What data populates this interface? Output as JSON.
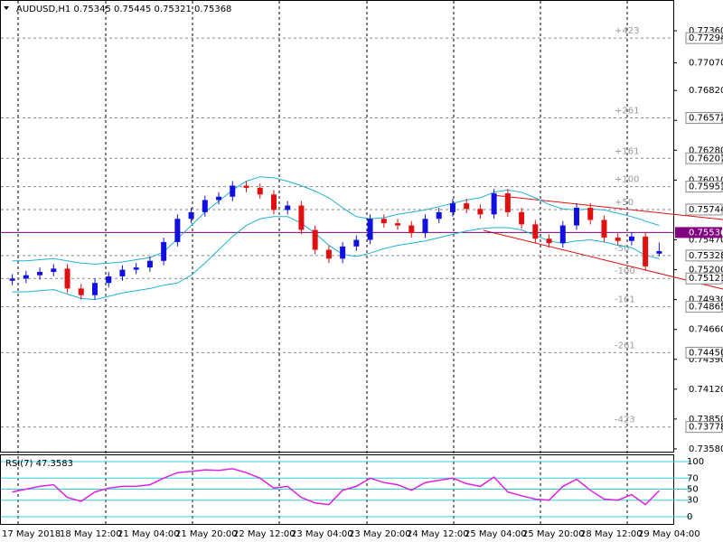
{
  "chart_data": [
    {
      "type": "candlestick",
      "title": "AUDUSD,H1  0.75345 0.75445 0.75321 0.75368",
      "categories": [
        "17 May 2018",
        "18 May 12:00",
        "21 May 04:00",
        "21 May 20:00",
        "22 May 12:00",
        "23 May 04:00",
        "23 May 20:00",
        "24 May 12:00",
        "25 May 04:00",
        "25 May 20:00",
        "28 May 12:00",
        "29 May 04:00"
      ],
      "open": [
        0.751,
        0.7512,
        0.7515,
        0.7518,
        0.7521,
        0.7503,
        0.7497,
        0.7508,
        0.7514,
        0.752,
        0.7522,
        0.7528,
        0.7545,
        0.7566,
        0.7572,
        0.7583,
        0.7586,
        0.7596,
        0.7594,
        0.7588,
        0.7574,
        0.7578,
        0.7556,
        0.7538,
        0.753,
        0.7541,
        0.7547,
        0.7566,
        0.7562,
        0.756,
        0.7553,
        0.7566,
        0.7572,
        0.758,
        0.7575,
        0.757,
        0.7589,
        0.7572,
        0.7561,
        0.7548,
        0.7544,
        0.756,
        0.7576,
        0.7565,
        0.7549,
        0.7546,
        0.755,
        0.75345
      ],
      "high": [
        0.7516,
        0.7519,
        0.7522,
        0.7525,
        0.7525,
        0.7507,
        0.7512,
        0.7518,
        0.7524,
        0.7526,
        0.7532,
        0.7549,
        0.757,
        0.7576,
        0.7587,
        0.759,
        0.76,
        0.76,
        0.7598,
        0.7592,
        0.7582,
        0.7582,
        0.756,
        0.7542,
        0.7545,
        0.7551,
        0.757,
        0.757,
        0.7566,
        0.7564,
        0.757,
        0.7576,
        0.7584,
        0.7584,
        0.7579,
        0.7593,
        0.7593,
        0.7576,
        0.7565,
        0.7552,
        0.7564,
        0.758,
        0.758,
        0.7569,
        0.7553,
        0.7554,
        0.7554,
        0.75445
      ],
      "low": [
        0.7506,
        0.7508,
        0.7511,
        0.7514,
        0.7499,
        0.7493,
        0.7493,
        0.7504,
        0.751,
        0.7516,
        0.7518,
        0.7524,
        0.7541,
        0.7562,
        0.7568,
        0.7579,
        0.7582,
        0.759,
        0.7584,
        0.757,
        0.757,
        0.7552,
        0.7534,
        0.7526,
        0.7526,
        0.7537,
        0.7543,
        0.7558,
        0.7556,
        0.7549,
        0.7549,
        0.7562,
        0.7568,
        0.7571,
        0.7566,
        0.7566,
        0.7568,
        0.7557,
        0.7544,
        0.754,
        0.754,
        0.7556,
        0.7561,
        0.7545,
        0.7542,
        0.7542,
        0.7519,
        0.75321
      ],
      "close": [
        0.7512,
        0.7515,
        0.7518,
        0.7521,
        0.7503,
        0.7497,
        0.7508,
        0.7514,
        0.752,
        0.7522,
        0.7528,
        0.7545,
        0.7566,
        0.7572,
        0.7583,
        0.7586,
        0.7596,
        0.7594,
        0.7588,
        0.7574,
        0.7578,
        0.7556,
        0.7538,
        0.753,
        0.7541,
        0.7547,
        0.7566,
        0.7562,
        0.756,
        0.7553,
        0.7566,
        0.7572,
        0.758,
        0.7575,
        0.757,
        0.7589,
        0.7572,
        0.7561,
        0.7548,
        0.7544,
        0.756,
        0.7576,
        0.7565,
        0.7549,
        0.7546,
        0.755,
        0.7523,
        0.75368
      ],
      "upper_band": [
        0.7528,
        0.7528,
        0.7529,
        0.753,
        0.7528,
        0.7526,
        0.7525,
        0.7526,
        0.7527,
        0.7529,
        0.7531,
        0.7536,
        0.7548,
        0.756,
        0.7572,
        0.7582,
        0.7592,
        0.76,
        0.7604,
        0.7603,
        0.76,
        0.7596,
        0.7591,
        0.7585,
        0.7576,
        0.7568,
        0.7566,
        0.7567,
        0.757,
        0.7572,
        0.7574,
        0.7577,
        0.758,
        0.7583,
        0.7585,
        0.759,
        0.7592,
        0.759,
        0.7585,
        0.7579,
        0.7575,
        0.7574,
        0.7575,
        0.7574,
        0.7571,
        0.7568,
        0.7564,
        0.756
      ],
      "lower_band": [
        0.75,
        0.75,
        0.7501,
        0.7502,
        0.7498,
        0.7494,
        0.7493,
        0.7496,
        0.7499,
        0.7501,
        0.7503,
        0.7506,
        0.7508,
        0.7515,
        0.7526,
        0.7538,
        0.755,
        0.756,
        0.7566,
        0.7568,
        0.7568,
        0.7562,
        0.7553,
        0.7542,
        0.7534,
        0.7532,
        0.7535,
        0.7539,
        0.7542,
        0.7544,
        0.7546,
        0.7549,
        0.7552,
        0.7555,
        0.7557,
        0.7558,
        0.7558,
        0.7556,
        0.7551,
        0.7546,
        0.7544,
        0.7546,
        0.7547,
        0.7545,
        0.7542,
        0.754,
        0.7533,
        0.753
      ],
      "up_color": "#1010e0",
      "down_color": "#e01010",
      "band_color": "#20b0d8",
      "ylim": [
        0.73555,
        0.7763
      ],
      "yticks": [
        {
          "value": 0.7736,
          "label": "0.77360"
        },
        {
          "value": 0.7707,
          "label": "0.77070"
        },
        {
          "value": 0.7682,
          "label": "0.76820"
        },
        {
          "value": 0.7655,
          "label": "0.76550"
        },
        {
          "value": 0.7628,
          "label": "0.76280"
        },
        {
          "value": 0.7601,
          "label": "0.76010"
        },
        {
          "value": 0.7547,
          "label": "0.75470"
        },
        {
          "value": 0.752,
          "label": "0.75200"
        },
        {
          "value": 0.7493,
          "label": "0.74930"
        },
        {
          "value": 0.7466,
          "label": "0.74660"
        },
        {
          "value": 0.7439,
          "label": "0.74390"
        },
        {
          "value": 0.7412,
          "label": "0.74120"
        },
        {
          "value": 0.7385,
          "label": "0.73850"
        },
        {
          "value": 0.7358,
          "label": "0.73580"
        }
      ],
      "levels": [
        {
          "value": 0.77294,
          "label": "0.77294",
          "offset": "+423"
        },
        {
          "value": 0.76572,
          "label": "0.76572",
          "offset": "+261"
        },
        {
          "value": 0.76207,
          "label": "0.76207",
          "offset": "+161"
        },
        {
          "value": 0.75951,
          "label": "0.75951",
          "offset": "+100"
        },
        {
          "value": 0.75744,
          "label": "0.75744",
          "offset": "+50"
        },
        {
          "value": 0.75328,
          "label": "0.75328",
          "offset": "-50"
        },
        {
          "value": 0.75121,
          "label": "0.75121",
          "offset": "-100"
        },
        {
          "value": 0.74865,
          "label": "0.74865",
          "offset": "-161"
        },
        {
          "value": 0.7445,
          "label": "0.74450",
          "offset": "-261"
        },
        {
          "value": 0.73778,
          "label": "0.73778",
          "offset": "-423"
        }
      ],
      "marker_line": {
        "value": 0.75536,
        "label": "0.75536",
        "color": "#800080"
      }
    },
    {
      "type": "line",
      "title": "RSI(7) 47.3583",
      "color": "#e020e0",
      "values": [
        45,
        50,
        55,
        58,
        35,
        28,
        45,
        52,
        55,
        55,
        58,
        70,
        80,
        82,
        85,
        84,
        87,
        80,
        70,
        52,
        55,
        35,
        25,
        22,
        48,
        55,
        70,
        62,
        58,
        48,
        62,
        66,
        70,
        60,
        55,
        72,
        45,
        38,
        32,
        30,
        55,
        68,
        48,
        32,
        30,
        40,
        22,
        47.36
      ],
      "ylim": [
        -13,
        113
      ],
      "yticks": [
        0,
        30,
        50,
        70,
        100
      ]
    }
  ]
}
